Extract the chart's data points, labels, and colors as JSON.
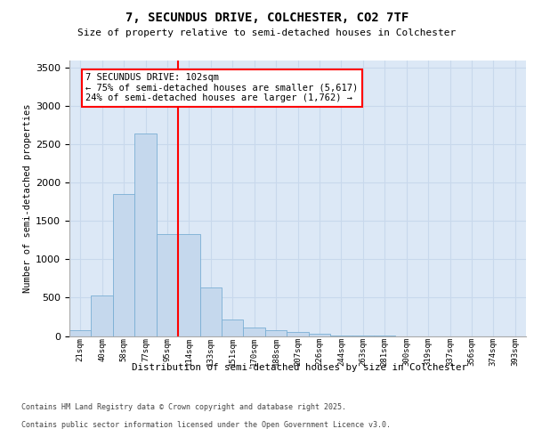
{
  "title_line1": "7, SECUNDUS DRIVE, COLCHESTER, CO2 7TF",
  "title_line2": "Size of property relative to semi-detached houses in Colchester",
  "xlabel": "Distribution of semi-detached houses by size in Colchester",
  "ylabel": "Number of semi-detached properties",
  "categories": [
    "21sqm",
    "40sqm",
    "58sqm",
    "77sqm",
    "95sqm",
    "114sqm",
    "133sqm",
    "151sqm",
    "170sqm",
    "188sqm",
    "207sqm",
    "226sqm",
    "244sqm",
    "263sqm",
    "281sqm",
    "300sqm",
    "319sqm",
    "337sqm",
    "356sqm",
    "374sqm",
    "393sqm"
  ],
  "values": [
    80,
    530,
    1850,
    2640,
    1330,
    1330,
    630,
    220,
    110,
    75,
    50,
    30,
    10,
    5,
    2,
    0,
    0,
    0,
    0,
    0,
    0
  ],
  "bar_color": "#c5d8ed",
  "bar_edge_color": "#7aafd4",
  "grid_color": "#c8d8ec",
  "background_color": "#dce8f6",
  "annotation_text_line1": "7 SECUNDUS DRIVE: 102sqm",
  "annotation_text_line2": "← 75% of semi-detached houses are smaller (5,617)",
  "annotation_text_line3": "24% of semi-detached houses are larger (1,762) →",
  "red_line_x": 4.5,
  "ylim": [
    0,
    3600
  ],
  "yticks": [
    0,
    500,
    1000,
    1500,
    2000,
    2500,
    3000,
    3500
  ],
  "footer_line1": "Contains HM Land Registry data © Crown copyright and database right 2025.",
  "footer_line2": "Contains public sector information licensed under the Open Government Licence v3.0."
}
